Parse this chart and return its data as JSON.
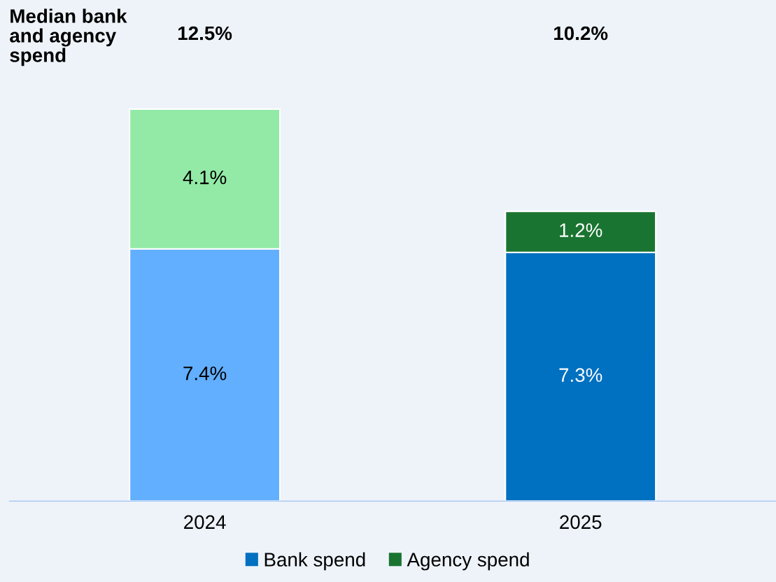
{
  "chart_data": {
    "type": "bar",
    "title": "Median bank and agency spend",
    "stacked": true,
    "categories": [
      "2024",
      "2025"
    ],
    "series": [
      {
        "name": "Bank spend",
        "color": "#0070c0",
        "colors": [
          "#61affe",
          "#0070c0"
        ],
        "values": [
          7.4,
          7.3
        ],
        "value_labels": [
          "7.4%",
          "7.3%"
        ]
      },
      {
        "name": "Agency spend",
        "color": "#1a7431",
        "colors": [
          "#92eaa6",
          "#1a7431"
        ],
        "values": [
          4.1,
          1.2
        ],
        "value_labels": [
          "4.1%",
          "1.2%"
        ]
      }
    ],
    "annotations": [
      "12.5%",
      "10.2%"
    ],
    "legend": "bottom",
    "grid": false
  }
}
